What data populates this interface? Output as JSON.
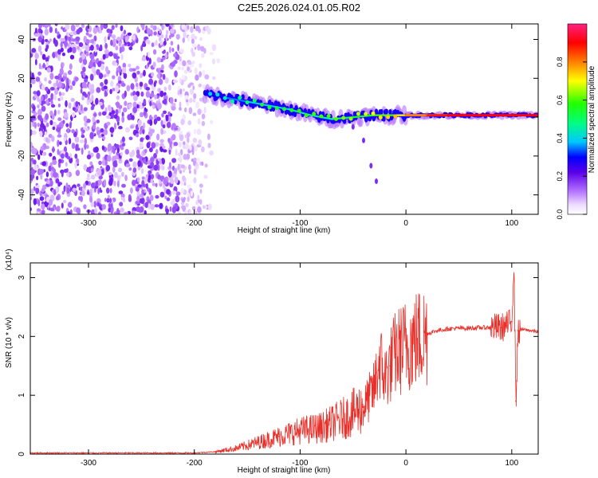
{
  "title": "C2E5.2026.024.01.05.R02",
  "chart_data": [
    {
      "type": "heatmap",
      "xlabel": "Height of straight line (km)",
      "ylabel": "Frequency (Hz)",
      "xlim": [
        -355,
        125
      ],
      "ylim": [
        -50,
        48
      ],
      "xticks": [
        -300,
        -200,
        -100,
        0,
        100
      ],
      "yticks": [
        -40,
        -20,
        0,
        20,
        40
      ],
      "colorbar": {
        "label": "Normalized spectral amplitude",
        "range": [
          0,
          1
        ],
        "ticks": [
          0.0,
          0.2,
          0.4,
          0.6,
          0.8
        ],
        "tick_labels": [
          "0.0",
          "0.2",
          "0.4",
          "0.6",
          "0.8"
        ]
      },
      "noise_region": {
        "x": [
          -355,
          -175
        ],
        "freq": [
          -50,
          48
        ],
        "amplitude": [
          0.05,
          0.2
        ]
      },
      "signal_ridge": [
        {
          "x": -190,
          "freq": 12,
          "amplitude": 0.25
        },
        {
          "x": -170,
          "freq": 10,
          "amplitude": 0.3
        },
        {
          "x": -150,
          "freq": 8,
          "amplitude": 0.35
        },
        {
          "x": -130,
          "freq": 6,
          "amplitude": 0.4
        },
        {
          "x": -110,
          "freq": 4,
          "amplitude": 0.4
        },
        {
          "x": -90,
          "freq": 1,
          "amplitude": 0.45
        },
        {
          "x": -70,
          "freq": -1,
          "amplitude": 0.45
        },
        {
          "x": -50,
          "freq": 0,
          "amplitude": 0.5
        },
        {
          "x": -30,
          "freq": 1,
          "amplitude": 0.55
        },
        {
          "x": -10,
          "freq": 1,
          "amplitude": 0.6
        },
        {
          "x": 0,
          "freq": 1,
          "amplitude": 0.7
        },
        {
          "x": 20,
          "freq": 1,
          "amplitude": 0.8
        },
        {
          "x": 40,
          "freq": 1,
          "amplitude": 0.85
        },
        {
          "x": 60,
          "freq": 1,
          "amplitude": 0.9
        },
        {
          "x": 80,
          "freq": 1,
          "amplitude": 0.9
        },
        {
          "x": 100,
          "freq": 1,
          "amplitude": 0.9
        },
        {
          "x": 125,
          "freq": 1,
          "amplitude": 0.9
        }
      ],
      "branch": [
        {
          "x": -50,
          "freq": -5
        },
        {
          "x": -40,
          "freq": -12
        },
        {
          "x": -33,
          "freq": -25
        },
        {
          "x": -28,
          "freq": -33
        }
      ]
    },
    {
      "type": "line",
      "xlabel": "Height of straight line (km)",
      "ylabel": "SNR (10 * v/v)",
      "y_multiplier": "(x10⁴)",
      "xlim": [
        -355,
        125
      ],
      "ylim": [
        0,
        3.25
      ],
      "xticks": [
        -300,
        -200,
        -100,
        0,
        100
      ],
      "yticks": [
        0,
        1,
        2,
        3
      ],
      "color": "#e8302a",
      "series": [
        {
          "x": [
            -355,
            -200,
            -180,
            -160,
            -140,
            -120,
            -100,
            -80,
            -60,
            -40,
            -30,
            -25,
            -20,
            -15,
            -10,
            0,
            10,
            20,
            30,
            40,
            50,
            60,
            70,
            80,
            90,
            95,
            100,
            102,
            104,
            106,
            110,
            125
          ],
          "y": [
            0.02,
            0.02,
            0.04,
            0.1,
            0.2,
            0.3,
            0.4,
            0.45,
            0.6,
            0.8,
            1.1,
            1.6,
            1.3,
            1.5,
            1.7,
            1.85,
            1.95,
            2.05,
            2.1,
            2.13,
            2.14,
            2.14,
            2.15,
            2.15,
            2.15,
            2.18,
            2.25,
            3.25,
            0.9,
            2.1,
            2.12,
            2.08
          ]
        }
      ]
    }
  ]
}
